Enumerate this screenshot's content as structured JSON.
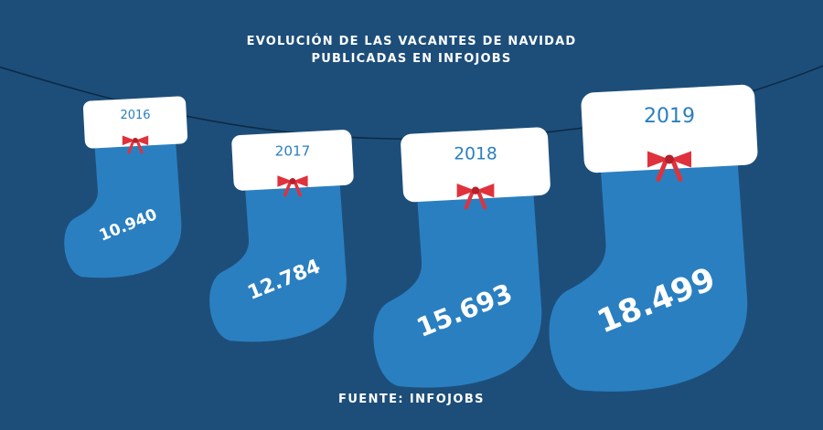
{
  "title_lines": [
    "EVOLUCIÓN DE LAS VACANTES DE NAVIDAD",
    "PUBLICADAS EN INFOJOBS"
  ],
  "source": "FUENTE: INFOJOBS",
  "colors": {
    "background": "#1d4e7a",
    "stocking": "#2a7fc0",
    "cuff": "#ffffff",
    "bow": "#e0323c",
    "year_text": "#2a7fc0",
    "value_text": "#ffffff",
    "string": "#0d2a45"
  },
  "chart_data": {
    "type": "bar",
    "categories": [
      "2016",
      "2017",
      "2018",
      "2019"
    ],
    "values": [
      10940,
      12784,
      15693,
      18499
    ],
    "value_labels": [
      "10.940",
      "12.784",
      "15.693",
      "18.499"
    ],
    "title": "EVOLUCIÓN DE LAS VACANTES DE NAVIDAD PUBLICADAS EN INFOJOBS"
  }
}
